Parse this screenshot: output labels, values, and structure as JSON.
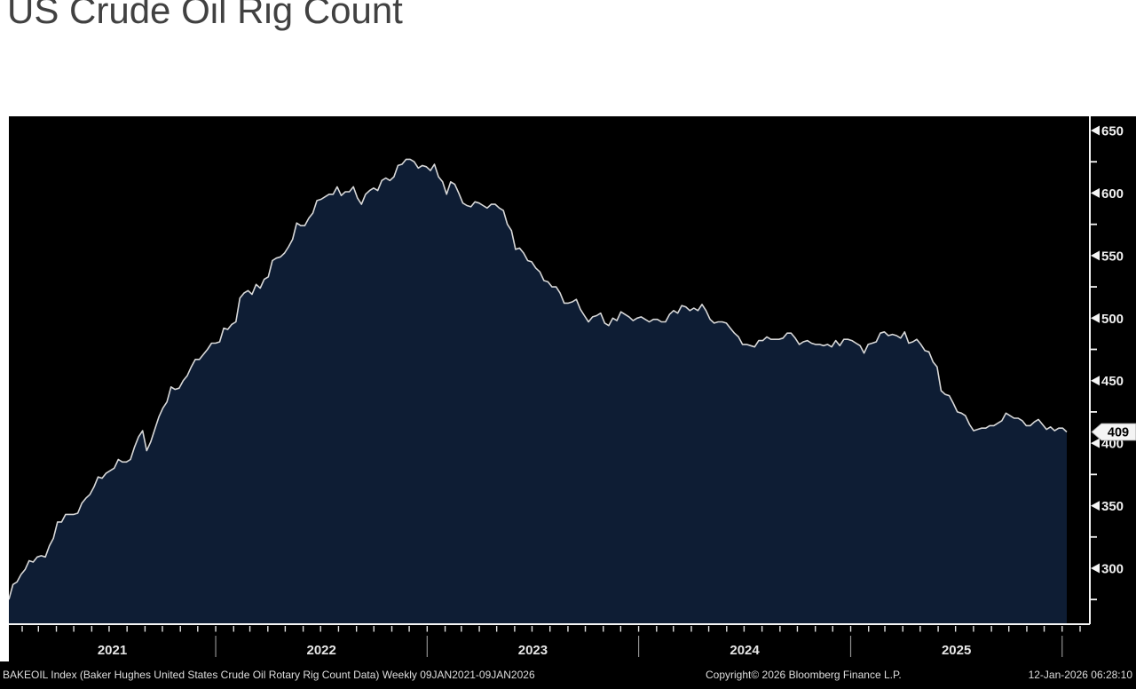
{
  "page": {
    "title": "US Crude Oil Rig Count"
  },
  "chart": {
    "last_value_badge": "409",
    "colors": {
      "page_bg": "#ffffff",
      "title_text": "#414141",
      "panel_bg": "#000000",
      "area_fill": "#0e1d34",
      "line": "#d8d8d8",
      "axis": "#f5f5f5",
      "tick_label": "#f0f0f0",
      "year_label": "#e6e6e6",
      "year_separator": "#8f8f8f",
      "badge_bg": "#f4f4f4",
      "badge_text": "#000000",
      "footer_text": "#dedede"
    },
    "footer": {
      "left": "BAKEOIL Index (Baker Hughes United States Crude Oil Rotary Rig Count Data) Weekly 09JAN2021-09JAN2026",
      "center": "Copyright© 2026 Bloomberg Finance L.P.",
      "right": "12-Jan-2026 06:28:10"
    }
  },
  "chart_data": {
    "type": "area",
    "title": "US Crude Oil Rig Count",
    "series_name": "BAKEOIL Index (Baker Hughes United States Crude Oil Rotary Rig Count)",
    "frequency": "weekly",
    "x_start": "2021-01-09",
    "x_end": "2026-01-09",
    "x_year_labels": [
      "2021",
      "2022",
      "2023",
      "2024",
      "2025"
    ],
    "ylim": [
      255,
      662
    ],
    "y_ticks": [
      300,
      350,
      400,
      450,
      500,
      550,
      600,
      650
    ],
    "y_minor_ticks": [
      275,
      325,
      375,
      425,
      475,
      525,
      575,
      625
    ],
    "last_value": 409,
    "legend_position": "none",
    "grid": false,
    "values": [
      275,
      287,
      289,
      295,
      299,
      306,
      305,
      309,
      310,
      309,
      318,
      324,
      337,
      337,
      343,
      343,
      343,
      344,
      352,
      356,
      359,
      365,
      373,
      372,
      376,
      378,
      380,
      387,
      385,
      385,
      387,
      397,
      405,
      410,
      394,
      401,
      411,
      421,
      428,
      433,
      445,
      443,
      444,
      450,
      454,
      461,
      467,
      467,
      471,
      475,
      480,
      480,
      481,
      492,
      491,
      495,
      497,
      516,
      520,
      522,
      519,
      527,
      524,
      531,
      533,
      546,
      548,
      549,
      552,
      557,
      563,
      576,
      574,
      574,
      580,
      584,
      594,
      595,
      597,
      599,
      599,
      605,
      598,
      601,
      601,
      605,
      596,
      591,
      599,
      602,
      604,
      602,
      610,
      612,
      610,
      613,
      622,
      623,
      627,
      627,
      625,
      620,
      622,
      621,
      618,
      623,
      613,
      609,
      599,
      609,
      607,
      600,
      592,
      590,
      589,
      593,
      592,
      590,
      588,
      591,
      591,
      588,
      586,
      575,
      570,
      555,
      556,
      552,
      546,
      545,
      540,
      537,
      530,
      529,
      525,
      525,
      520,
      512,
      512,
      513,
      515,
      507,
      502,
      497,
      501,
      502,
      504,
      496,
      494,
      500,
      498,
      505,
      503,
      501,
      498,
      500,
      501,
      499,
      497,
      499,
      499,
      497,
      497,
      503,
      506,
      504,
      510,
      509,
      506,
      508,
      506,
      511,
      506,
      499,
      496,
      497,
      497,
      496,
      492,
      488,
      485,
      479,
      479,
      478,
      477,
      482,
      482,
      485,
      483,
      483,
      483,
      484,
      488,
      488,
      484,
      479,
      481,
      482,
      480,
      479,
      479,
      478,
      479,
      477,
      482,
      478,
      483,
      483,
      482,
      480,
      478,
      472,
      479,
      480,
      481,
      488,
      489,
      486,
      487,
      486,
      484,
      489,
      480,
      481,
      483,
      479,
      474,
      473,
      465,
      461,
      442,
      439,
      438,
      432,
      425,
      424,
      422,
      415,
      410,
      411,
      412,
      412,
      414,
      414,
      416,
      418,
      424,
      422,
      420,
      420,
      418,
      414,
      414,
      417,
      419,
      415,
      411,
      413,
      410,
      412,
      412,
      409
    ]
  }
}
